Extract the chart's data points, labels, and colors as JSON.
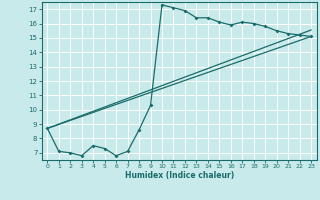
{
  "xlabel": "Humidex (Indice chaleur)",
  "bg_color": "#c8eaea",
  "grid_color": "#ffffff",
  "line_color": "#1a6b6b",
  "xlim": [
    -0.5,
    23.5
  ],
  "ylim": [
    6.5,
    17.5
  ],
  "yticks": [
    7,
    8,
    9,
    10,
    11,
    12,
    13,
    14,
    15,
    16,
    17
  ],
  "xticks": [
    0,
    1,
    2,
    3,
    4,
    5,
    6,
    7,
    8,
    9,
    10,
    11,
    12,
    13,
    14,
    15,
    16,
    17,
    18,
    19,
    20,
    21,
    22,
    23
  ],
  "line1_x": [
    0,
    1,
    2,
    3,
    4,
    5,
    6,
    7,
    8,
    9,
    10,
    11,
    12,
    13,
    14,
    15,
    16,
    17,
    18,
    19,
    20,
    21,
    22,
    23
  ],
  "line1_y": [
    8.7,
    7.1,
    7.0,
    6.8,
    7.5,
    7.3,
    6.8,
    7.1,
    8.6,
    10.3,
    17.3,
    17.1,
    16.9,
    16.4,
    16.4,
    16.1,
    15.9,
    16.1,
    16.0,
    15.8,
    15.5,
    15.3,
    15.2,
    15.1
  ],
  "line2_x": [
    0,
    23
  ],
  "line2_y": [
    8.7,
    15.1
  ],
  "line3_x": [
    0,
    23
  ],
  "line3_y": [
    8.7,
    15.55
  ],
  "figsize": [
    3.2,
    2.0
  ],
  "dpi": 100
}
